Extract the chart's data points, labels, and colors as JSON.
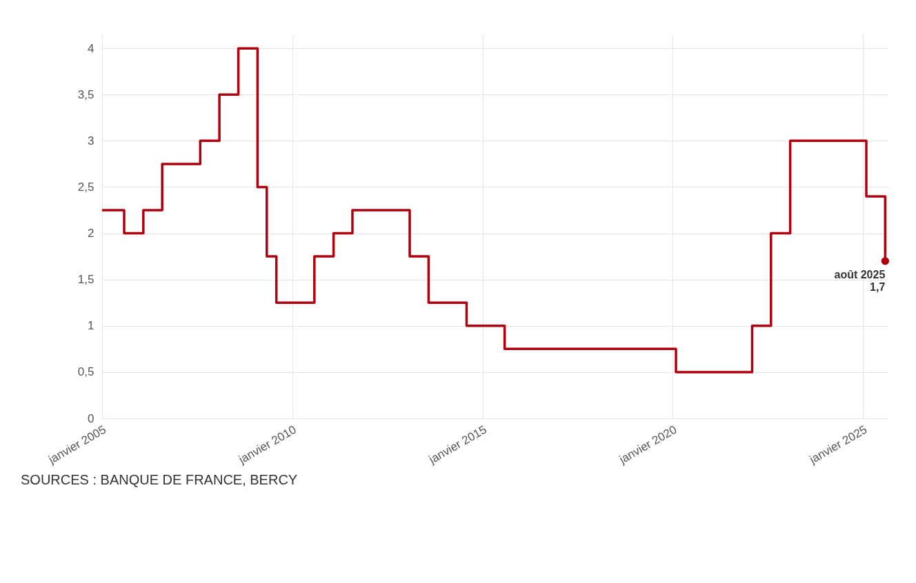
{
  "chart_data": {
    "type": "step",
    "x": [
      "2005-01",
      "2005-08",
      "2006-02",
      "2006-08",
      "2007-08",
      "2008-02",
      "2008-08",
      "2009-02",
      "2009-05",
      "2009-08",
      "2010-08",
      "2011-02",
      "2011-08",
      "2013-02",
      "2013-08",
      "2014-08",
      "2015-08",
      "2020-02",
      "2022-02",
      "2022-08",
      "2023-02",
      "2025-02",
      "2025-08"
    ],
    "series": [
      {
        "color": "#b0000e",
        "values": [
          2.25,
          2.0,
          2.25,
          2.75,
          3.0,
          3.5,
          4.0,
          2.5,
          1.75,
          1.25,
          1.75,
          2.0,
          2.25,
          1.75,
          1.25,
          1.0,
          0.75,
          0.5,
          1.0,
          2.0,
          3.0,
          2.4,
          1.7
        ]
      }
    ],
    "xlim": [
      "2005-01",
      "2025-09"
    ],
    "xticks": [
      {
        "value": "2005-01",
        "label": "janvier 2005"
      },
      {
        "value": "2010-01",
        "label": "janvier 2010"
      },
      {
        "value": "2015-01",
        "label": "janvier 2015"
      },
      {
        "value": "2020-01",
        "label": "janvier 2020"
      },
      {
        "value": "2025-01",
        "label": "janvier 2025"
      }
    ],
    "ylim": [
      0,
      4.15
    ],
    "yticks": [
      0,
      {
        "value": 0.5,
        "label": "0,5"
      },
      1,
      {
        "value": 1.5,
        "label": "1,5"
      },
      2,
      {
        "value": 2.5,
        "label": "2,5"
      },
      3,
      {
        "value": 3.5,
        "label": "3,5"
      },
      4
    ],
    "grid": true,
    "annotations": [
      {
        "text": "août 2025\n1,7",
        "x": "2025-08",
        "y": 1.7
      },
      "SOURCES : BANQUE DE FRANCE, BERCY"
    ]
  }
}
